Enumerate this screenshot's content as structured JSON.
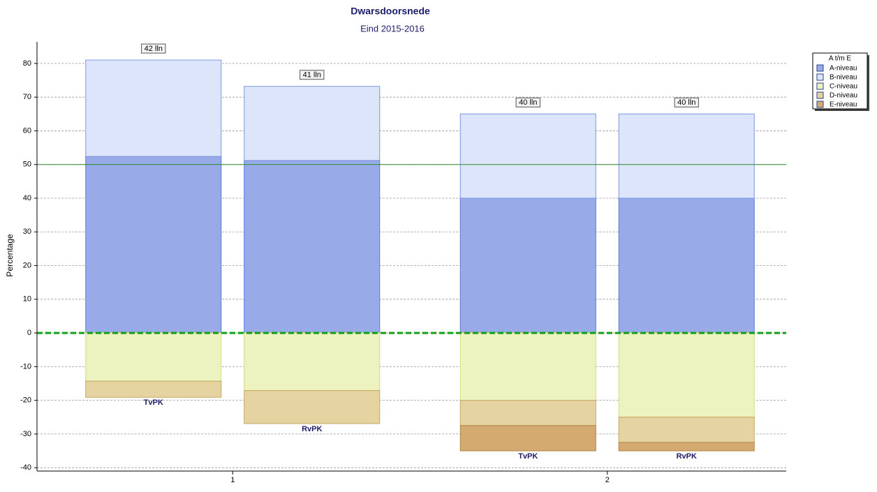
{
  "chart_data": {
    "type": "stacked_bar",
    "title": "Dwarsdoorsnede",
    "subtitle": "Eind 2015-2016",
    "y_label": "Percentage",
    "groups": [
      "1",
      "2"
    ],
    "categories": [
      "TvPK",
      "RvPK",
      "TvPK",
      "RvPK"
    ],
    "annotations": [
      "42 lln",
      "41 lln",
      "40 lln",
      "40 lln"
    ],
    "legend_title": "A t/m E",
    "legend_position": "top-right",
    "series": [
      {
        "name": "A-niveau",
        "color": "#98abe8",
        "values": [
          52.4,
          51.2,
          40,
          40
        ]
      },
      {
        "name": "B-niveau",
        "color": "#dde5fb",
        "values": [
          28.6,
          22.0,
          25,
          25
        ]
      },
      {
        "name": "C-niveau",
        "color": "#edf3c0",
        "values": [
          -14.3,
          -17.1,
          -20,
          -25
        ]
      },
      {
        "name": "D-niveau",
        "color": "#e5d4a1",
        "values": [
          -4.8,
          -9.8,
          -7.5,
          -7.5
        ]
      },
      {
        "name": "E-niveau",
        "color": "#d4aa70",
        "values": [
          0,
          0,
          -7.5,
          -2.5
        ]
      }
    ],
    "ylim": [
      -41,
      86.4
    ],
    "yticks": [
      -40,
      -30,
      -20,
      -10,
      0,
      10,
      20,
      30,
      40,
      50,
      60,
      70,
      80
    ],
    "grid": true,
    "reference_lines": [
      {
        "value": 0,
        "color": "#14a014",
        "style": "dashed"
      },
      {
        "value": 50,
        "color": "#2a8a2a",
        "style": "solid"
      }
    ]
  }
}
